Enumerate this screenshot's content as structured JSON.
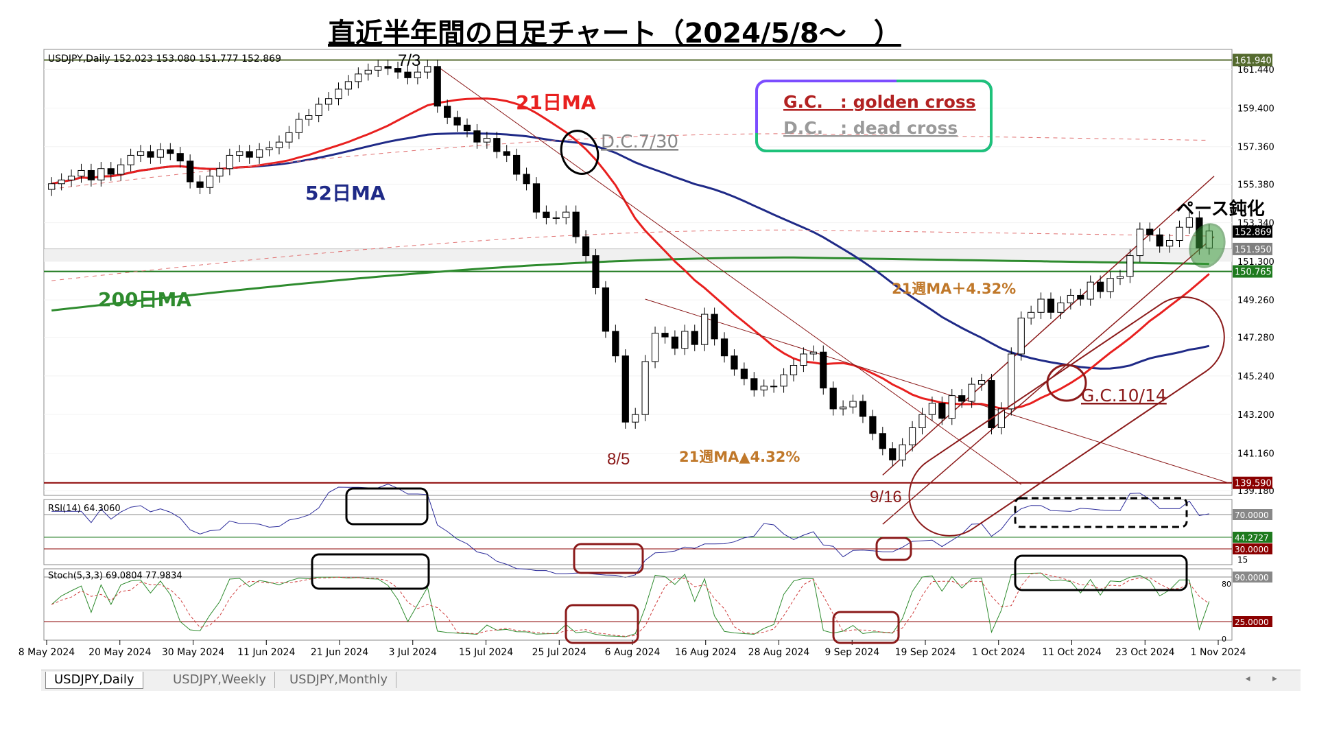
{
  "title": "直近半年間の日足チャート（2024/5/8～　）",
  "header_text": "USDJPY,Daily  152.023 153.080 151.777 152.869",
  "chart_data": [
    {
      "type": "candlestick",
      "symbol": "USDJPY,Daily",
      "ohlc_header": [
        152.023,
        153.08,
        151.777,
        152.869
      ],
      "ylim": [
        139.0,
        162.5
      ],
      "y_ticks": [
        "161.440",
        "159.400",
        "157.360",
        "155.380",
        "153.340",
        "151.300",
        "149.260",
        "147.280",
        "145.240",
        "143.200",
        "141.160",
        "139.180"
      ],
      "x_ticks": [
        "8 May 2024",
        "20 May 2024",
        "30 May 2024",
        "11 Jun 2024",
        "21 Jun 2024",
        "3 Jul 2024",
        "15 Jul 2024",
        "25 Jul 2024",
        "6 Aug 2024",
        "16 Aug 2024",
        "28 Aug 2024",
        "9 Sep 2024",
        "19 Sep 2024",
        "1 Oct 2024",
        "11 Oct 2024",
        "23 Oct 2024",
        "1 Nov 2024"
      ],
      "price_boxes": [
        {
          "value": "161.940",
          "color": "#556b2f"
        },
        {
          "value": "152.869",
          "color": "#000000"
        },
        {
          "value": "151.950",
          "color": "#808080"
        },
        {
          "value": "150.765",
          "color": "#1e7a1e"
        },
        {
          "value": "139.590",
          "color": "#8b0000"
        }
      ],
      "horizontal_levels": [
        161.94,
        151.95,
        150.765,
        139.59
      ],
      "closes": [
        155.4,
        155.6,
        155.8,
        156.1,
        155.6,
        156.2,
        155.9,
        156.4,
        156.9,
        157.1,
        156.8,
        157.2,
        157.0,
        156.6,
        155.5,
        155.2,
        155.8,
        156.2,
        156.9,
        157.1,
        156.8,
        157.2,
        157.3,
        157.6,
        158.1,
        158.8,
        159.0,
        159.6,
        159.9,
        160.4,
        160.8,
        161.2,
        161.4,
        161.6,
        161.5,
        161.3,
        161.0,
        161.3,
        161.6,
        159.5,
        158.9,
        158.5,
        158.2,
        157.6,
        157.8,
        157.1,
        156.9,
        155.9,
        155.4,
        153.9,
        153.6,
        153.6,
        153.9,
        152.6,
        151.6,
        149.9,
        147.6,
        146.3,
        142.8,
        143.2,
        146.0,
        147.5,
        147.3,
        146.7,
        147.6,
        146.9,
        148.5,
        147.2,
        146.3,
        145.6,
        145.1,
        144.5,
        144.7,
        144.7,
        145.3,
        145.8,
        146.4,
        146.5,
        144.6,
        143.5,
        143.6,
        143.9,
        143.1,
        142.2,
        141.4,
        140.8,
        141.6,
        142.5,
        143.2,
        143.8,
        143.0,
        144.2,
        143.9,
        144.8,
        145.0,
        142.5,
        143.5,
        146.4,
        148.3,
        148.6,
        149.3,
        148.6,
        149.1,
        149.5,
        149.3,
        150.2,
        149.7,
        150.4,
        150.5,
        151.6,
        153.0,
        152.7,
        152.1,
        152.4,
        153.1,
        153.6,
        152.0,
        152.9
      ]
    },
    {
      "type": "line",
      "panel": "RSI",
      "title": "RSI(14) 64.3060",
      "ylim": [
        15,
        80
      ],
      "levels": [
        "70.0000",
        "44.2727",
        "30.0000"
      ],
      "tick": "15"
    },
    {
      "type": "line",
      "panel": "Stochastic",
      "title": "Stoch(5,3,3) 69.0804 77.9834",
      "ylim": [
        0,
        100
      ],
      "levels": [
        "90.0000",
        "25.0000"
      ],
      "ticks": [
        "80",
        "0"
      ]
    }
  ],
  "annotations": {
    "label_73": "7/3",
    "ma21": "21日MA",
    "ma52": "52日MA",
    "ma200": "200日MA",
    "dc": "D.C.7/30",
    "legend_gc": "G.C.　: golden cross",
    "legend_dc": "D.C.　: dead cross",
    "pace": "ペース鈍化",
    "week_plus": "21週MA＋4.32%",
    "week_minus": "21週MA▲4.32%",
    "gc": "G.C.10/14",
    "label_85": "8/5",
    "label_916": "9/16"
  },
  "colors": {
    "ma21": "#e8201f",
    "ma52": "#1f2a87",
    "ma200": "#2e8b2e",
    "channel": "#8b1a1a",
    "orange_text": "#c0782a",
    "legend_border_left": "#7c4dff",
    "legend_border_right": "#1ec27a"
  },
  "tabs": [
    "USDJPY,Daily",
    "USDJPY,Weekly",
    "USDJPY,Monthly"
  ],
  "scroll_arrows": "◂ ▸"
}
